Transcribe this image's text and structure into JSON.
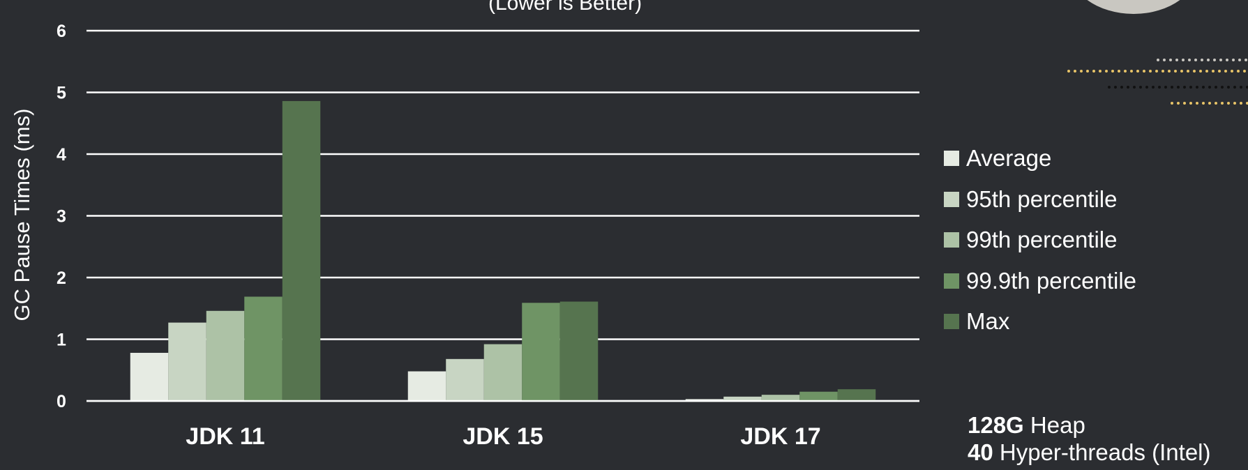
{
  "subtitle": "(Lower is Better)",
  "legend": [
    "Average",
    "95th percentile",
    "99th percentile",
    "99.9th percentile",
    "Max"
  ],
  "footnote": {
    "heap_value": "128G",
    "heap_label": " Heap",
    "threads_value": "40",
    "threads_label": " Hyper-threads (Intel)"
  },
  "colors": {
    "background": "#2b2d31",
    "series": [
      "#e6ebe3",
      "#c8d5c3",
      "#adc2a6",
      "#6f9465",
      "#56744f"
    ],
    "grid": "#ffffff",
    "decor_gold": "#e8c468",
    "decor_gray": "#c9c7c1",
    "decor_dark": "#111111"
  },
  "chart_data": {
    "type": "bar",
    "title": "(Lower is Better)",
    "xlabel": "",
    "ylabel": "GC Pause Times (ms)",
    "ylim": [
      0,
      6
    ],
    "yticks": [
      0,
      1,
      2,
      3,
      4,
      5,
      6
    ],
    "grid": true,
    "legend_position": "right",
    "categories": [
      "JDK 11",
      "JDK 15",
      "JDK 17"
    ],
    "series": [
      {
        "name": "Average",
        "values": [
          0.78,
          0.48,
          0.03
        ]
      },
      {
        "name": "95th percentile",
        "values": [
          1.27,
          0.68,
          0.07
        ]
      },
      {
        "name": "99th percentile",
        "values": [
          1.46,
          0.92,
          0.1
        ]
      },
      {
        "name": "99.9th percentile",
        "values": [
          1.69,
          1.59,
          0.15
        ]
      },
      {
        "name": "Max",
        "values": [
          4.86,
          1.61,
          0.19
        ]
      }
    ]
  }
}
